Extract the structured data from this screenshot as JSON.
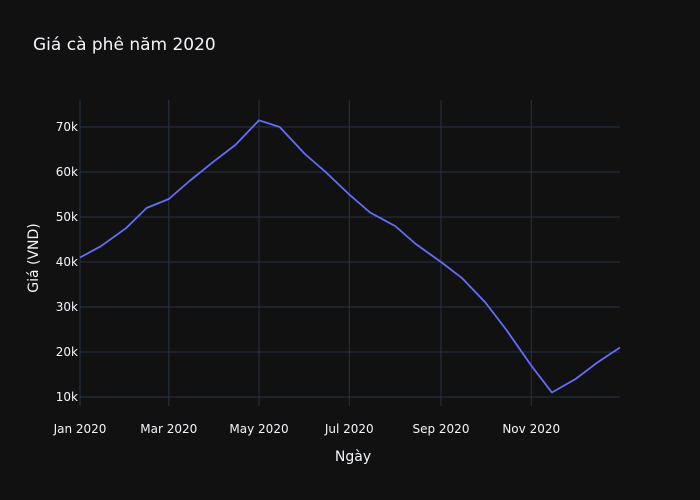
{
  "chart_data": {
    "type": "line",
    "title": "Giá cà phê năm 2020",
    "xlabel": "Ngày",
    "ylabel": "Giá (VND)",
    "x_ticks": [
      {
        "date": "2020-01-01",
        "label": "Jan 2020"
      },
      {
        "date": "2020-03-01",
        "label": "Mar 2020"
      },
      {
        "date": "2020-05-01",
        "label": "May 2020"
      },
      {
        "date": "2020-07-01",
        "label": "Jul 2020"
      },
      {
        "date": "2020-09-01",
        "label": "Sep 2020"
      },
      {
        "date": "2020-11-01",
        "label": "Nov 2020"
      }
    ],
    "y_ticks": [
      {
        "value": 10000,
        "label": "10k"
      },
      {
        "value": 20000,
        "label": "20k"
      },
      {
        "value": 30000,
        "label": "30k"
      },
      {
        "value": 40000,
        "label": "40k"
      },
      {
        "value": 50000,
        "label": "50k"
      },
      {
        "value": 60000,
        "label": "60k"
      },
      {
        "value": 70000,
        "label": "70k"
      }
    ],
    "xlim": [
      "2020-01-01",
      "2020-12-31"
    ],
    "ylim": [
      8000,
      76000
    ],
    "grid": true,
    "color": "#636efa",
    "series": [
      {
        "x": [
          "2020-01-01",
          "2020-01-15",
          "2020-02-01",
          "2020-02-15",
          "2020-03-01",
          "2020-03-15",
          "2020-04-01",
          "2020-04-15",
          "2020-05-01",
          "2020-05-15",
          "2020-06-01",
          "2020-06-15",
          "2020-07-01",
          "2020-07-15",
          "2020-08-01",
          "2020-08-15",
          "2020-09-01",
          "2020-09-15",
          "2020-10-01",
          "2020-10-15",
          "2020-11-01",
          "2020-11-15",
          "2020-12-01",
          "2020-12-15",
          "2020-12-31"
        ],
        "y": [
          41000,
          43500,
          47500,
          52000,
          54000,
          58000,
          62500,
          66000,
          71500,
          70000,
          64000,
          60000,
          55000,
          51000,
          48000,
          44000,
          40000,
          36500,
          31000,
          25000,
          17000,
          11000,
          14000,
          17500,
          21000
        ]
      }
    ]
  }
}
